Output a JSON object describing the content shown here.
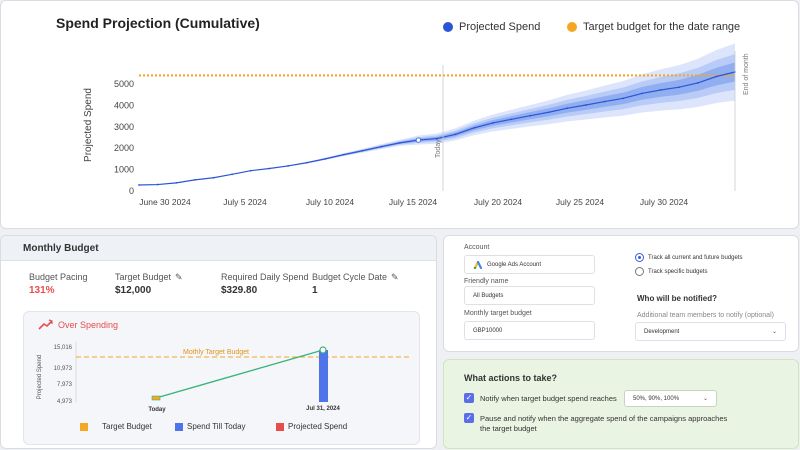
{
  "projection": {
    "title": "Spend Projection (Cumulative)",
    "legend": {
      "projected": "Projected Spend",
      "target": "Target budget for the date range"
    },
    "colors": {
      "projected": "#2a55d6",
      "target": "#f5a623"
    },
    "today_label": "Today",
    "end_label": "End of month",
    "chart_data": {
      "type": "line",
      "ylabel": "Projected Spend",
      "y_ticks": [
        0,
        1000,
        2000,
        3000,
        4000,
        5000
      ],
      "x_ticks": [
        "June 30 2024",
        "July 5 2024",
        "July 10 2024",
        "July 15 2024",
        "July 20 2024",
        "July 25 2024",
        "July 30 2024"
      ],
      "ylim": [
        0,
        6000
      ],
      "target_value": 5400,
      "series": [
        {
          "name": "Projected Spend",
          "x": [
            0,
            1,
            2,
            3,
            4,
            5,
            6,
            7,
            8,
            9,
            10,
            11,
            12,
            13,
            14,
            15,
            16,
            17,
            18,
            19,
            20,
            21,
            22,
            23,
            24,
            25,
            26,
            27,
            28,
            29,
            30,
            31,
            32
          ],
          "y": [
            280,
            300,
            380,
            520,
            620,
            780,
            950,
            1050,
            1170,
            1320,
            1500,
            1700,
            1880,
            2070,
            2250,
            2380,
            2450,
            2650,
            2950,
            3180,
            3350,
            3520,
            3680,
            3870,
            4020,
            4180,
            4330,
            4560,
            4720,
            4850,
            5050,
            5350,
            5560
          ]
        }
      ],
      "bands_note": ""
    }
  },
  "monthly_budget": {
    "header": "Monthly Budget",
    "pacing_label": "Budget Pacing",
    "pacing_value": "131%",
    "target_label": "Target Budget",
    "target_value": "$12,000",
    "daily_label": "Required Daily Spend",
    "daily_value": "$329.80",
    "cycle_label": "Budget Cycle Date",
    "cycle_value": "1",
    "over_title": "Over Spending",
    "mini_chart": {
      "ylabel": "Projected Spend",
      "y_ticks": [
        "15,016",
        "10,973",
        "7,973",
        "4,973"
      ],
      "target_line_label": "Mothly Target Budget",
      "x_labels": [
        "Today",
        "Jul 31, 2024"
      ]
    },
    "legend": {
      "target": "Target Budget",
      "spend": "Spend Till Today",
      "projected": "Projected Spend"
    },
    "legend_colors": {
      "target": "#f5a623",
      "spend": "#4f73e8",
      "projected": "#e84d4d"
    }
  },
  "settings": {
    "account_label": "Account",
    "account_value": "Google Ads Account",
    "friendly_label": "Friendly name",
    "friendly_value": "All Budgets",
    "monthly_label": "Monthly target budget",
    "monthly_value": "GBP10000",
    "track_all": "Track all current and future budgets",
    "track_specific": "Track specific budgets",
    "notify_title": "Who will be notified?",
    "additional_label": "Additional team members to notify (optional)",
    "additional_value": "Development"
  },
  "actions": {
    "title": "What actions to take?",
    "notify_label": "Notify when target budget spend reaches",
    "notify_value": "50%, 90%, 100%",
    "pause_label": "Pause and notify when the aggregate spend of the campaigns approaches the target budget"
  }
}
